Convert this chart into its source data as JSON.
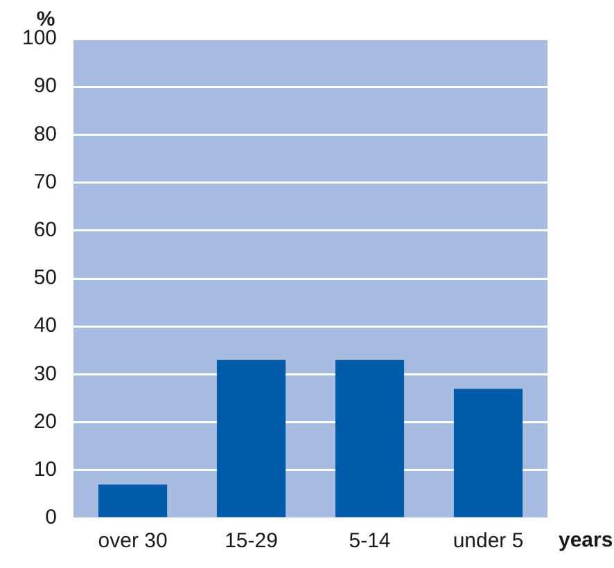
{
  "chart_data": {
    "type": "bar",
    "categories": [
      "over 30",
      "15-29",
      "5-14",
      "under 5"
    ],
    "values": [
      7,
      33,
      33,
      27
    ],
    "color": "#005ca9",
    "ylabel": "%",
    "xlabel": "years",
    "ylim": [
      0,
      100
    ],
    "yticks": [
      0,
      10,
      20,
      30,
      40,
      50,
      60,
      70,
      80,
      90,
      100
    ],
    "grid": "y",
    "legend": false
  }
}
